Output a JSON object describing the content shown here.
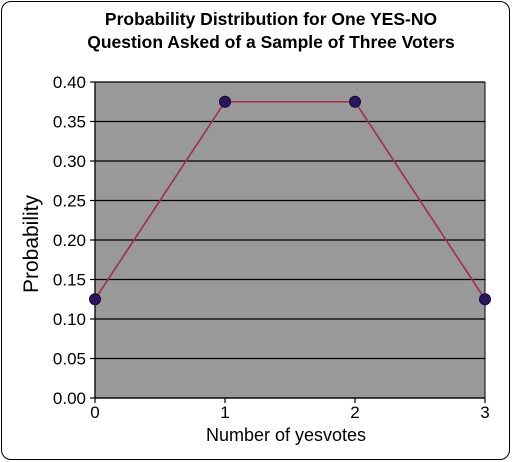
{
  "chart_data": {
    "type": "line",
    "title_lines": [
      "Probability Distribution for One YES-NO",
      "Question Asked of a Sample of Three Voters"
    ],
    "xlabel": "Number of yesvotes",
    "ylabel": "Probability",
    "x": [
      0,
      1,
      2,
      3
    ],
    "x_tick_labels": [
      "0",
      "1",
      "2",
      "3"
    ],
    "y": [
      0.125,
      0.375,
      0.375,
      0.125
    ],
    "xlim": [
      0,
      3
    ],
    "ylim": [
      0.0,
      0.4
    ],
    "y_tick_labels": [
      "0.00",
      "0.05",
      "0.10",
      "0.15",
      "0.20",
      "0.25",
      "0.30",
      "0.35",
      "0.40"
    ],
    "grid": "horizontal",
    "colors": {
      "plot_background": "#999999",
      "grid_line": "#000000",
      "series_line": "#a0304a",
      "marker_fill": "#2a1660",
      "marker_stroke": "#120a35"
    }
  }
}
